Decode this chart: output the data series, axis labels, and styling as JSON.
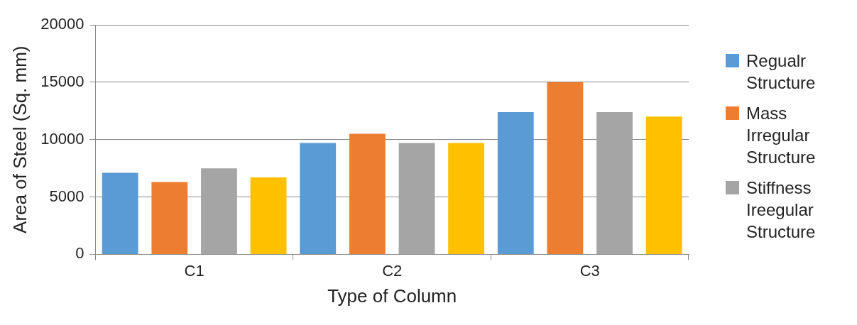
{
  "chart_data": {
    "type": "bar",
    "xlabel": "Type of Column",
    "ylabel": "Area of Steel (Sq. mm)",
    "categories": [
      "C1",
      "C2",
      "C3"
    ],
    "series": [
      {
        "name": "Regualr Structure",
        "color": "#5b9bd5",
        "values": [
          7100,
          9700,
          12400
        ]
      },
      {
        "name": "Mass Irregular Structure",
        "color": "#ed7d31",
        "values": [
          6300,
          10500,
          15000
        ]
      },
      {
        "name": "Stiffness Ireegular Structure",
        "color": "#a5a5a5",
        "values": [
          7500,
          9700,
          12400
        ]
      },
      {
        "color": "#ffc000",
        "values": [
          6700,
          9700,
          12000
        ]
      }
    ],
    "ylim": [
      0,
      20000
    ],
    "yticks": [
      0,
      5000,
      10000,
      15000,
      20000
    ],
    "grid": "y",
    "legend": "right"
  }
}
